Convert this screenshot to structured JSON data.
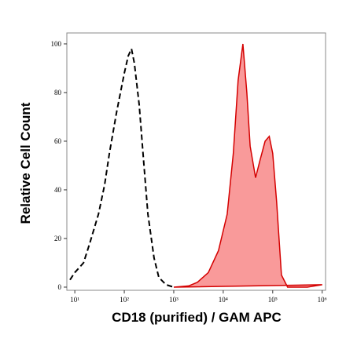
{
  "chart_data": {
    "type": "histogram-overlay",
    "x_label": "CD18 (purified) / GAM APC",
    "y_label": "Relative Cell Count",
    "xscale": "log",
    "xlim": [
      6.9,
      1170000
    ],
    "ylim": [
      -1.3,
      104.5
    ],
    "xticks": [
      {
        "value": 10,
        "label": "10¹"
      },
      {
        "value": 100,
        "label": "10²"
      },
      {
        "value": 1000,
        "label": "10³"
      },
      {
        "value": 10000,
        "label": "10⁴"
      },
      {
        "value": 100000,
        "label": "10⁵"
      },
      {
        "value": 1000000,
        "label": "10⁶"
      }
    ],
    "yticks": [
      0,
      20,
      40,
      60,
      80,
      100
    ],
    "series": [
      {
        "color": "#000000",
        "line_style": "dashed",
        "fill": null,
        "x": [
          8,
          10,
          15,
          20,
          30,
          40,
          50,
          70,
          100,
          120,
          140,
          160,
          200,
          250,
          300,
          400,
          500,
          700,
          1000
        ],
        "values": [
          3,
          6,
          10,
          18,
          30,
          42,
          55,
          72,
          88,
          95,
          98,
          92,
          75,
          50,
          30,
          12,
          4,
          1,
          0
        ]
      },
      {
        "color": "#d40000",
        "line_style": "solid",
        "fill": "#f99a9a",
        "x": [
          1000,
          2000,
          3000,
          5000,
          8000,
          12000,
          16000,
          20000,
          25000,
          30000,
          35000,
          45000,
          55000,
          70000,
          85000,
          100000,
          120000,
          150000,
          200000,
          500000,
          1000000
        ],
        "values": [
          0,
          0.5,
          2,
          6,
          15,
          30,
          55,
          85,
          100,
          80,
          58,
          45,
          52,
          60,
          62,
          55,
          35,
          5,
          0,
          0,
          1
        ]
      }
    ]
  }
}
